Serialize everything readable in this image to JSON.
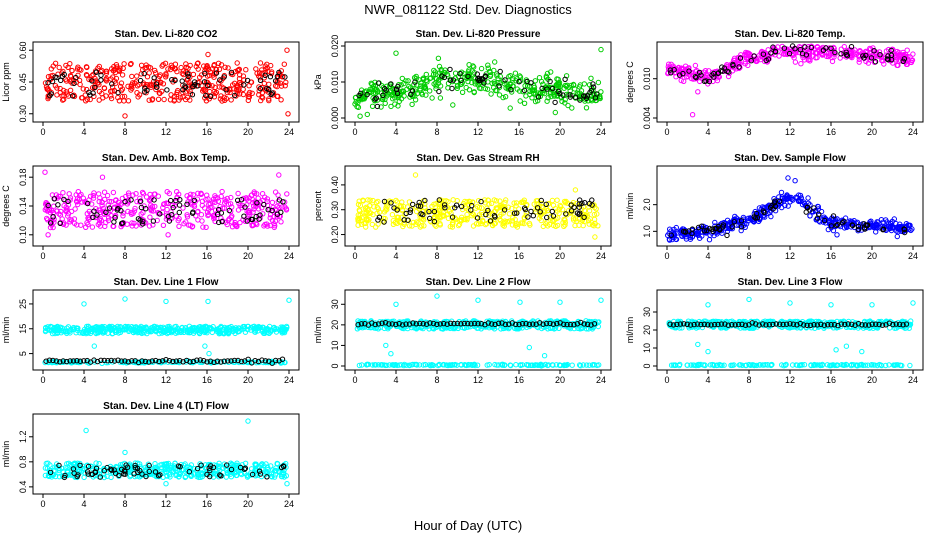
{
  "figure": {
    "title": "NWR_081122  Std. Dev. Diagnostics",
    "xlabel": "Hour of Day (UTC)"
  },
  "colors": {
    "red": "#ff0000",
    "green": "#00cc00",
    "magenta": "#ff00ff",
    "yellow": "#ffff00",
    "blue": "#0000ff",
    "cyan": "#00ffff",
    "black": "#000000"
  },
  "chart_data": [
    {
      "type": "scatter",
      "title": "Stan. Dev. Li-820 CO2",
      "ylabel": "Licor ppm",
      "xlim": [
        0,
        24
      ],
      "xticks": [
        0,
        4,
        8,
        12,
        16,
        20,
        24
      ],
      "ylim": [
        0.28,
        0.62
      ],
      "yticks": [
        "0.30",
        "0.45",
        "0.60"
      ],
      "series_color": "red",
      "dense_band": [
        0.36,
        0.54
      ],
      "black_band": [
        0.38,
        0.5
      ],
      "outliers": [
        [
          8.0,
          0.29
        ],
        [
          23.9,
          0.3
        ],
        [
          16.1,
          0.58
        ],
        [
          23.8,
          0.6
        ]
      ]
    },
    {
      "type": "scatter",
      "title": "Stan. Dev. Li-820 Pressure",
      "ylabel": "kPa",
      "xlim": [
        0,
        24
      ],
      "xticks": [
        0,
        4,
        8,
        12,
        16,
        20,
        24
      ],
      "ylim": [
        0.0,
        0.02
      ],
      "yticks": [
        "0.000",
        "0.010",
        "0.020"
      ],
      "series_color": "green",
      "trend": [
        [
          0,
          0.006
        ],
        [
          4,
          0.007
        ],
        [
          8,
          0.01
        ],
        [
          12,
          0.011
        ],
        [
          16,
          0.009
        ],
        [
          20,
          0.007
        ],
        [
          24,
          0.006
        ]
      ],
      "spread": 0.004,
      "outliers": [
        [
          0.5,
          0.0005
        ],
        [
          1.2,
          0.001
        ],
        [
          4.0,
          0.018
        ],
        [
          24.0,
          0.019
        ]
      ]
    },
    {
      "type": "scatter",
      "title": "Stan. Dev. Li-820 Temp.",
      "ylabel": "degrees C",
      "xlim": [
        0,
        24
      ],
      "xticks": [
        0,
        4,
        8,
        12,
        16,
        20,
        24
      ],
      "ylim": [
        0.004,
        0.015
      ],
      "yticks": [
        "0.004",
        "0.010"
      ],
      "series_color": "magenta",
      "trend": [
        [
          0,
          0.0115
        ],
        [
          2,
          0.011
        ],
        [
          4,
          0.01
        ],
        [
          6,
          0.0115
        ],
        [
          8,
          0.0135
        ],
        [
          12,
          0.014
        ],
        [
          16,
          0.014
        ],
        [
          20,
          0.0135
        ],
        [
          24,
          0.013
        ]
      ],
      "spread": 0.0012,
      "outliers": [
        [
          2.5,
          0.0045
        ],
        [
          3.0,
          0.008
        ]
      ]
    },
    {
      "type": "scatter",
      "title": "Stan. Dev. Amb. Box Temp.",
      "ylabel": "degrees C",
      "xlim": [
        0,
        24
      ],
      "xticks": [
        0,
        4,
        8,
        12,
        16,
        20,
        24
      ],
      "ylim": [
        0.09,
        0.19
      ],
      "yticks": [
        "0.10",
        "0.14",
        "0.18"
      ],
      "series_color": "magenta",
      "dense_band": [
        0.11,
        0.16
      ],
      "black_band": [
        0.115,
        0.15
      ],
      "outliers": [
        [
          0.2,
          0.187
        ],
        [
          5.8,
          0.18
        ],
        [
          23.0,
          0.183
        ],
        [
          0.5,
          0.1
        ],
        [
          12.2,
          0.1
        ]
      ]
    },
    {
      "type": "scatter",
      "title": "Stan. Dev. Gas Stream RH",
      "ylabel": "percent",
      "xlim": [
        0,
        24
      ],
      "xticks": [
        0,
        4,
        8,
        12,
        16,
        20,
        24
      ],
      "ylim": [
        0.17,
        0.46
      ],
      "yticks": [
        "0.20",
        "0.30",
        "0.40"
      ],
      "series_color": "yellow",
      "dense_band": [
        0.23,
        0.34
      ],
      "black_band": [
        0.25,
        0.34
      ],
      "outliers": [
        [
          5.9,
          0.44
        ],
        [
          23.4,
          0.19
        ],
        [
          21.5,
          0.38
        ]
      ]
    },
    {
      "type": "scatter",
      "title": "Stan. Dev. Sample Flow",
      "ylabel": "ml/min",
      "xlim": [
        0,
        24
      ],
      "xticks": [
        0,
        4,
        8,
        12,
        16,
        20,
        24
      ],
      "ylim": [
        0.6,
        3.3
      ],
      "yticks": [
        "1.0",
        "2.0"
      ],
      "series_color": "blue",
      "trend": [
        [
          0,
          0.9
        ],
        [
          4,
          1.0
        ],
        [
          8,
          1.4
        ],
        [
          10,
          1.9
        ],
        [
          12,
          2.3
        ],
        [
          14,
          1.8
        ],
        [
          16,
          1.3
        ],
        [
          20,
          1.2
        ],
        [
          24,
          1.1
        ]
      ],
      "spread": 0.25,
      "outliers": [
        [
          11.8,
          3.0
        ],
        [
          12.5,
          2.9
        ]
      ]
    },
    {
      "type": "scatter",
      "title": "Stan. Dev. Line 1 Flow",
      "ylabel": "ml/min",
      "xlim": [
        0,
        24
      ],
      "xticks": [
        0,
        4,
        8,
        12,
        16,
        20,
        24
      ],
      "ylim": [
        0,
        29
      ],
      "yticks": [
        "5",
        "15",
        "25"
      ],
      "series_color": "cyan",
      "upper_band": [
        13,
        16
      ],
      "lower_level": 1.5,
      "black_level": 2.0,
      "outliers": [
        [
          4.0,
          25
        ],
        [
          8.0,
          27
        ],
        [
          12.0,
          26
        ],
        [
          16.1,
          26
        ],
        [
          24.0,
          26.5
        ],
        [
          5.0,
          8
        ],
        [
          15.8,
          8
        ],
        [
          16.2,
          5
        ]
      ]
    },
    {
      "type": "scatter",
      "title": "Stan. Dev. Line 2 Flow",
      "ylabel": "ml/min",
      "xlim": [
        0,
        24
      ],
      "xticks": [
        0,
        4,
        8,
        12,
        16,
        20,
        24
      ],
      "ylim": [
        0,
        35
      ],
      "yticks": [
        "0",
        "10",
        "20",
        "30"
      ],
      "series_color": "cyan",
      "upper_band": [
        18,
        22
      ],
      "lower_level": 0.5,
      "black_level": 20.5,
      "outliers": [
        [
          4.0,
          30
        ],
        [
          8.0,
          34
        ],
        [
          12.0,
          32
        ],
        [
          16.1,
          31
        ],
        [
          20.0,
          31
        ],
        [
          24.0,
          32
        ],
        [
          3.0,
          10
        ],
        [
          3.5,
          6
        ],
        [
          17.0,
          9
        ],
        [
          18.5,
          5
        ]
      ]
    },
    {
      "type": "scatter",
      "title": "Stan. Dev. Line 3 Flow",
      "ylabel": "ml/min",
      "xlim": [
        0,
        24
      ],
      "xticks": [
        0,
        4,
        8,
        12,
        16,
        20,
        24
      ],
      "ylim": [
        0,
        40
      ],
      "yticks": [
        "0",
        "10",
        "20",
        "30"
      ],
      "series_color": "cyan",
      "upper_band": [
        21,
        25
      ],
      "lower_level": 0.5,
      "black_level": 23,
      "outliers": [
        [
          4.0,
          34
        ],
        [
          8.0,
          37
        ],
        [
          12.0,
          35
        ],
        [
          16.0,
          34
        ],
        [
          20.0,
          34
        ],
        [
          24.0,
          35
        ],
        [
          3.0,
          12
        ],
        [
          4.0,
          8
        ],
        [
          16.5,
          9
        ],
        [
          17.5,
          11
        ],
        [
          19.0,
          8
        ]
      ]
    },
    {
      "type": "scatter",
      "title": "Stan. Dev. Line 4 (LT) Flow",
      "ylabel": "ml/min",
      "xlim": [
        0,
        24
      ],
      "xticks": [
        0,
        4,
        8,
        12,
        16,
        20,
        24
      ],
      "ylim": [
        0.35,
        1.5
      ],
      "yticks": [
        "0.4",
        "0.8",
        "1.2"
      ],
      "series_color": "cyan",
      "dense_band": [
        0.55,
        0.78
      ],
      "black_band": [
        0.55,
        0.75
      ],
      "outliers": [
        [
          4.2,
          1.3
        ],
        [
          20.0,
          1.45
        ],
        [
          8.0,
          0.95
        ],
        [
          23.8,
          0.45
        ],
        [
          12.0,
          0.45
        ]
      ]
    }
  ]
}
